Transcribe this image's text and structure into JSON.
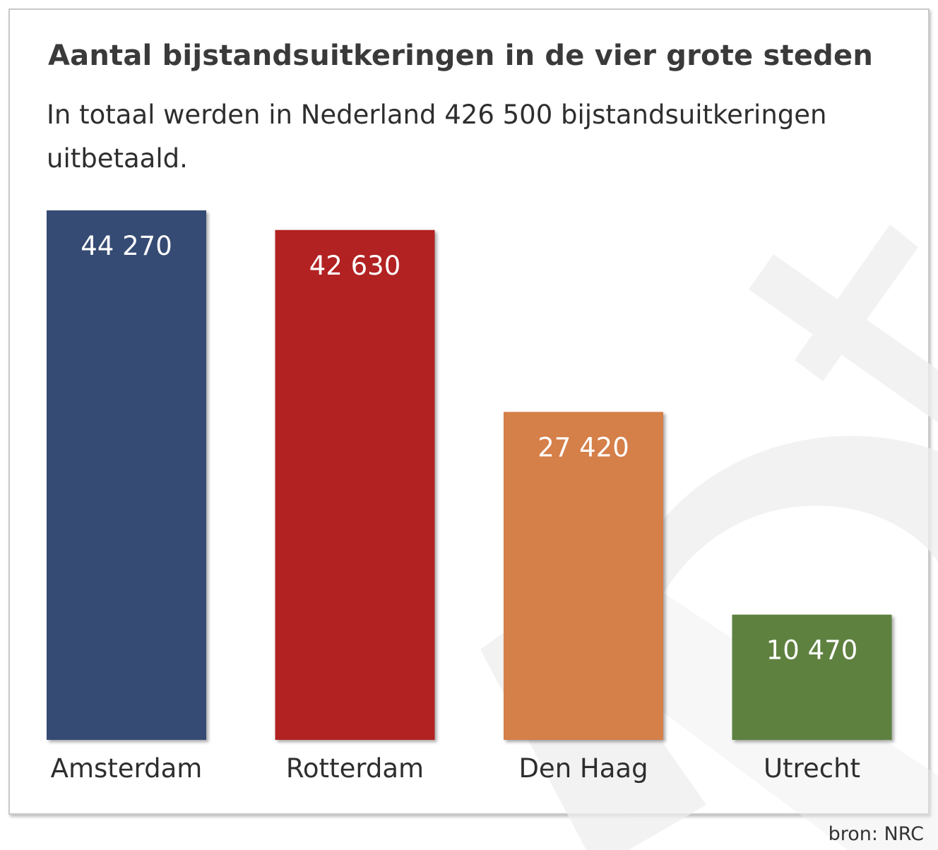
{
  "chart_data": {
    "type": "bar",
    "title": "Aantal bijstandsuitkeringen in de vier grote steden",
    "subtitle": "In totaal werden in Nederland 426 500 bijstandsuitkeringen uitbetaald.",
    "categories": [
      "Amsterdam",
      "Rotterdam",
      "Den Haag",
      "Utrecht"
    ],
    "values": [
      44270,
      42630,
      27420,
      10470
    ],
    "value_labels": [
      "44 270",
      "42 630",
      "27 420",
      "10 470"
    ],
    "colors": [
      "#344b73",
      "#b22424",
      "#d57f48",
      "#5f8140"
    ],
    "xlabel": "",
    "ylabel": "",
    "ylim": [
      0,
      44270
    ],
    "grid": false,
    "legend": "none",
    "source": "bron: NRC"
  }
}
